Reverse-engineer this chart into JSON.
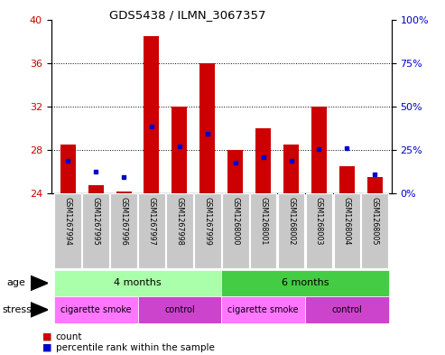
{
  "title": "GDS5438 / ILMN_3067357",
  "samples": [
    "GSM1267994",
    "GSM1267995",
    "GSM1267996",
    "GSM1267997",
    "GSM1267998",
    "GSM1267999",
    "GSM1268000",
    "GSM1268001",
    "GSM1268002",
    "GSM1268003",
    "GSM1268004",
    "GSM1268005"
  ],
  "counts": [
    28.5,
    24.8,
    24.2,
    38.5,
    32.0,
    36.0,
    28.0,
    30.0,
    28.5,
    32.0,
    26.5,
    25.5
  ],
  "percentile_ranks": [
    27.0,
    26.0,
    25.5,
    30.2,
    28.3,
    29.5,
    26.8,
    27.3,
    27.0,
    28.1,
    28.2,
    25.8
  ],
  "y_min": 24,
  "y_max": 40,
  "y_ticks": [
    24,
    28,
    32,
    36,
    40
  ],
  "y_right_ticks": [
    0,
    25,
    50,
    75,
    100
  ],
  "bar_color": "#cc0000",
  "pct_color": "#0000cc",
  "age_groups": [
    {
      "label": "4 months",
      "start": 0,
      "end": 5,
      "color": "#aaffaa"
    },
    {
      "label": "6 months",
      "start": 6,
      "end": 11,
      "color": "#44cc44"
    }
  ],
  "stress_groups": [
    {
      "label": "cigarette smoke",
      "start": 0,
      "end": 2,
      "color": "#ff77ff"
    },
    {
      "label": "control",
      "start": 3,
      "end": 5,
      "color": "#cc44cc"
    },
    {
      "label": "cigarette smoke",
      "start": 6,
      "end": 8,
      "color": "#ff77ff"
    },
    {
      "label": "control",
      "start": 9,
      "end": 11,
      "color": "#cc44cc"
    }
  ],
  "bg_color": "#ffffff",
  "label_bg": "#c8c8c8"
}
